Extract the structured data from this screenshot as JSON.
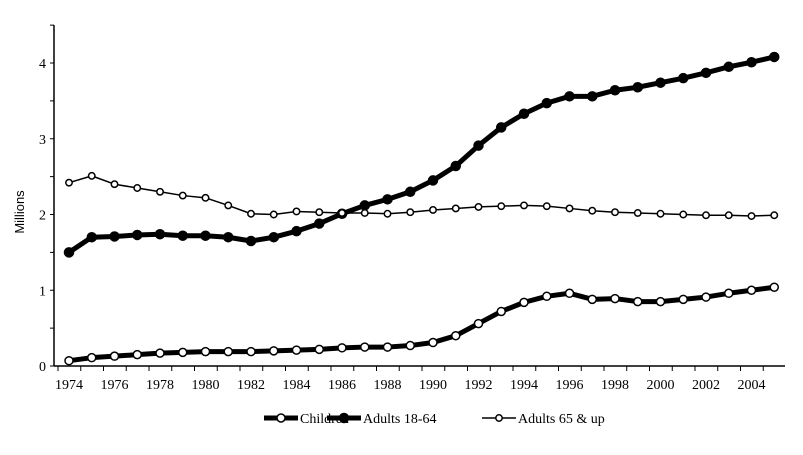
{
  "chart_data": {
    "type": "line",
    "title": "",
    "xlabel": "",
    "ylabel": "Millions",
    "ylim": [
      0,
      4.5
    ],
    "yticks": [
      0,
      1,
      2,
      3,
      4
    ],
    "xlim": [
      1974,
      2005
    ],
    "xtick_labels": [
      "1974",
      "1976",
      "1978",
      "1980",
      "1982",
      "1984",
      "1986",
      "1988",
      "1990",
      "1992",
      "1994",
      "1996",
      "1998",
      "2000",
      "2002",
      "2004"
    ],
    "grid": false,
    "legend_position": "bottom",
    "x": [
      1974,
      1975,
      1976,
      1977,
      1978,
      1979,
      1980,
      1981,
      1982,
      1983,
      1984,
      1985,
      1986,
      1987,
      1988,
      1989,
      1990,
      1991,
      1992,
      1993,
      1994,
      1995,
      1996,
      1997,
      1998,
      1999,
      2000,
      2001,
      2002,
      2003,
      2004,
      2005
    ],
    "series": [
      {
        "name": "Children",
        "style": "thick-open",
        "values": [
          0.07,
          0.11,
          0.13,
          0.15,
          0.17,
          0.18,
          0.19,
          0.19,
          0.19,
          0.2,
          0.21,
          0.22,
          0.24,
          0.25,
          0.25,
          0.27,
          0.31,
          0.4,
          0.56,
          0.72,
          0.84,
          0.92,
          0.96,
          0.88,
          0.89,
          0.85,
          0.85,
          0.88,
          0.91,
          0.96,
          1.0,
          1.04
        ]
      },
      {
        "name": "Adults 18-64",
        "style": "thick-filled",
        "values": [
          1.5,
          1.7,
          1.71,
          1.73,
          1.74,
          1.72,
          1.72,
          1.7,
          1.65,
          1.7,
          1.78,
          1.88,
          2.01,
          2.12,
          2.2,
          2.3,
          2.45,
          2.64,
          2.91,
          3.15,
          3.33,
          3.47,
          3.56,
          3.56,
          3.64,
          3.68,
          3.74,
          3.8,
          3.87,
          3.95,
          4.01,
          4.08
        ]
      },
      {
        "name": "Adults 65 & up",
        "style": "thin-open",
        "values": [
          2.42,
          2.51,
          2.4,
          2.35,
          2.3,
          2.25,
          2.22,
          2.12,
          2.01,
          2.0,
          2.04,
          2.03,
          2.02,
          2.02,
          2.01,
          2.03,
          2.06,
          2.08,
          2.1,
          2.11,
          2.12,
          2.11,
          2.08,
          2.05,
          2.03,
          2.02,
          2.01,
          2.0,
          1.99,
          1.99,
          1.98,
          1.99
        ]
      }
    ]
  }
}
